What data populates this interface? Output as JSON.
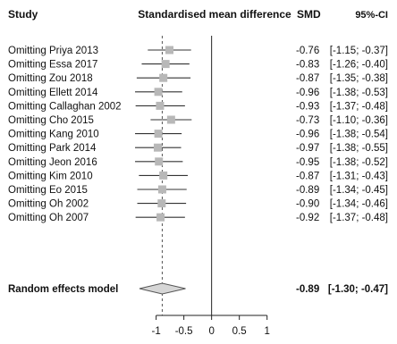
{
  "headers": {
    "study": "Study",
    "smd_title": "Standardised mean difference",
    "smd": "SMD",
    "ci": "95%-CI"
  },
  "chart_data": {
    "type": "forest",
    "xlim": [
      -1.3,
      1.15
    ],
    "ticks": [
      "-1",
      "-0.5",
      "0",
      "0.5",
      "1"
    ],
    "reference_line": 0,
    "pooled_line": -0.89,
    "rows": [
      {
        "label": "Omitting Priya 2013",
        "smd": -0.76,
        "lower": -1.15,
        "upper": -0.37,
        "smd_text": "-0.76",
        "ci_text": "[-1.15; -0.37]"
      },
      {
        "label": "Omitting Essa 2017",
        "smd": -0.83,
        "lower": -1.26,
        "upper": -0.4,
        "smd_text": "-0.83",
        "ci_text": "[-1.26; -0.40]"
      },
      {
        "label": "Omitting Zou 2018",
        "smd": -0.87,
        "lower": -1.35,
        "upper": -0.38,
        "smd_text": "-0.87",
        "ci_text": "[-1.35; -0.38]"
      },
      {
        "label": "Omitting Ellett 2014",
        "smd": -0.96,
        "lower": -1.38,
        "upper": -0.53,
        "smd_text": "-0.96",
        "ci_text": "[-1.38; -0.53]"
      },
      {
        "label": "Omitting Callaghan 2002",
        "smd": -0.93,
        "lower": -1.37,
        "upper": -0.48,
        "smd_text": "-0.93",
        "ci_text": "[-1.37; -0.48]"
      },
      {
        "label": "Omitting Cho 2015",
        "smd": -0.73,
        "lower": -1.1,
        "upper": -0.36,
        "smd_text": "-0.73",
        "ci_text": "[-1.10; -0.36]"
      },
      {
        "label": "Omitting Kang 2010",
        "smd": -0.96,
        "lower": -1.38,
        "upper": -0.54,
        "smd_text": "-0.96",
        "ci_text": "[-1.38; -0.54]"
      },
      {
        "label": "Omitting Park 2014",
        "smd": -0.97,
        "lower": -1.38,
        "upper": -0.55,
        "smd_text": "-0.97",
        "ci_text": "[-1.38; -0.55]"
      },
      {
        "label": "Omitting Jeon 2016",
        "smd": -0.95,
        "lower": -1.38,
        "upper": -0.52,
        "smd_text": "-0.95",
        "ci_text": "[-1.38; -0.52]"
      },
      {
        "label": "Omitting Kim 2010",
        "smd": -0.87,
        "lower": -1.31,
        "upper": -0.43,
        "smd_text": "-0.87",
        "ci_text": "[-1.31; -0.43]"
      },
      {
        "label": "Omitting Eo 2015",
        "smd": -0.89,
        "lower": -1.34,
        "upper": -0.45,
        "smd_text": "-0.89",
        "ci_text": "[-1.34; -0.45]"
      },
      {
        "label": "Omitting Oh 2002",
        "smd": -0.9,
        "lower": -1.34,
        "upper": -0.46,
        "smd_text": "-0.90",
        "ci_text": "[-1.34; -0.46]"
      },
      {
        "label": "Omitting Oh 2007",
        "smd": -0.92,
        "lower": -1.37,
        "upper": -0.48,
        "smd_text": "-0.92",
        "ci_text": "[-1.37; -0.48]"
      }
    ],
    "pooled": {
      "label": "Random effects model",
      "smd": -0.89,
      "lower": -1.3,
      "upper": -0.47,
      "smd_text": "-0.89",
      "ci_text": "[-1.30; -0.47]"
    },
    "colors": {
      "box": "#b8b8b8",
      "line": "#333333",
      "diamond_fill": "#d6d6d6",
      "diamond_stroke": "#555555",
      "dashed": "#555555"
    }
  }
}
